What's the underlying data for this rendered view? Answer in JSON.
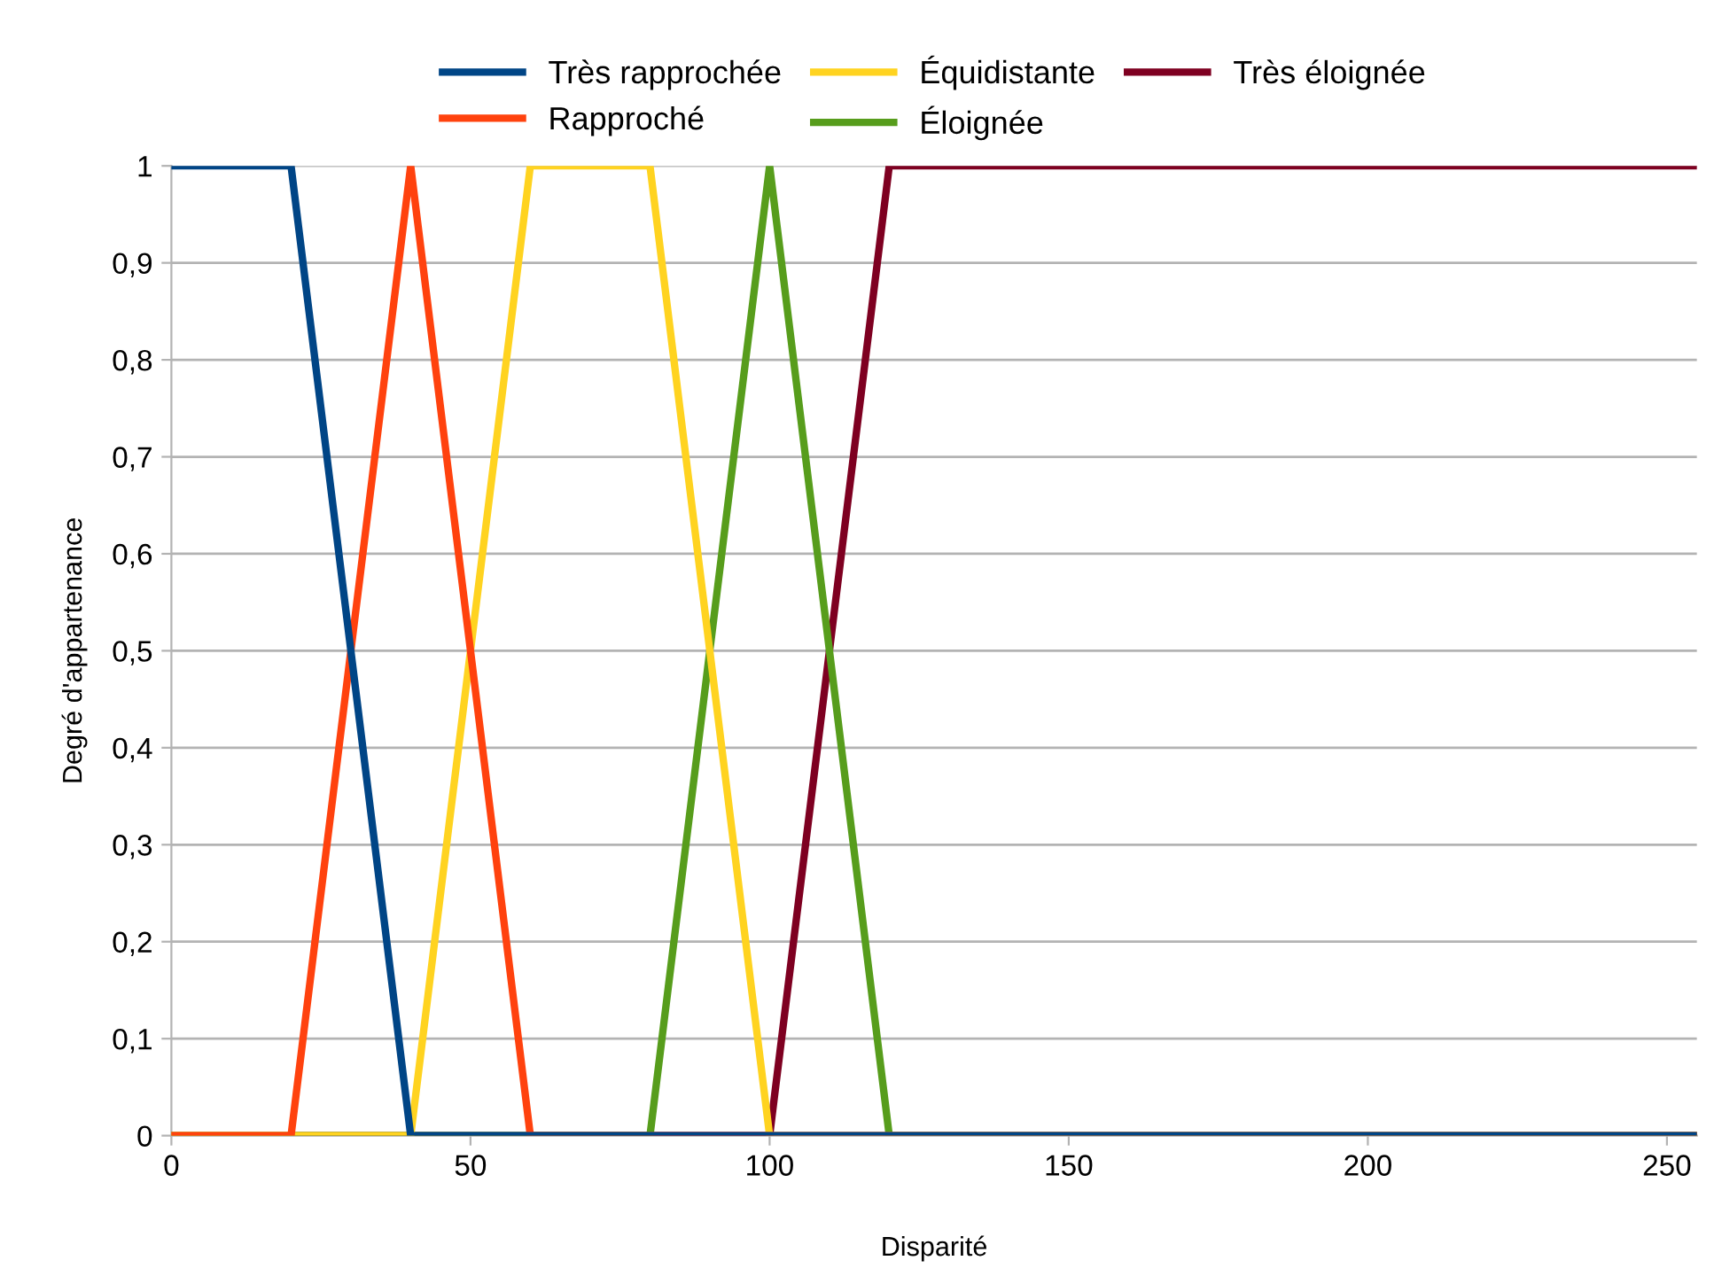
{
  "chart_data": {
    "type": "line",
    "xlabel": "Disparité",
    "ylabel": "Degré d'appartenance",
    "series": [
      {
        "name": "Très rapprochée",
        "color": "#004586",
        "x": [
          0,
          20,
          40,
          255
        ],
        "values": [
          1,
          1,
          0,
          0
        ]
      },
      {
        "name": "Rapproché",
        "color": "#ff420e",
        "x": [
          0,
          20,
          40,
          60,
          255
        ],
        "values": [
          0,
          0,
          1,
          0,
          0
        ]
      },
      {
        "name": "Équidistante",
        "color": "#ffd320",
        "x": [
          0,
          40,
          60,
          80,
          100,
          255
        ],
        "values": [
          0,
          0,
          1,
          1,
          0,
          0
        ]
      },
      {
        "name": "Éloignée",
        "color": "#579d1c",
        "x": [
          0,
          80,
          100,
          120,
          255
        ],
        "values": [
          0,
          0,
          1,
          0,
          0
        ]
      },
      {
        "name": "Très éloignée",
        "color": "#7e0021",
        "x": [
          0,
          100,
          120,
          255
        ],
        "values": [
          0,
          0,
          1,
          1
        ]
      }
    ],
    "xlim": [
      0,
      255
    ],
    "xticks": [
      0,
      50,
      100,
      150,
      200,
      250
    ],
    "ylim": [
      0,
      1
    ],
    "yticks": [
      0,
      {
        "value": 0.1,
        "label": "0,1"
      },
      {
        "value": 0.2,
        "label": "0,2"
      },
      {
        "value": 0.3,
        "label": "0,3"
      },
      {
        "value": 0.4,
        "label": "0,4"
      },
      {
        "value": 0.5,
        "label": "0,5"
      },
      {
        "value": 0.6,
        "label": "0,6"
      },
      {
        "value": 0.7,
        "label": "0,7"
      },
      {
        "value": 0.8,
        "label": "0,8"
      },
      {
        "value": 0.9,
        "label": "0,9"
      },
      1
    ],
    "grid": "y",
    "legend": "top",
    "marker": "none",
    "line_style": "solid"
  }
}
